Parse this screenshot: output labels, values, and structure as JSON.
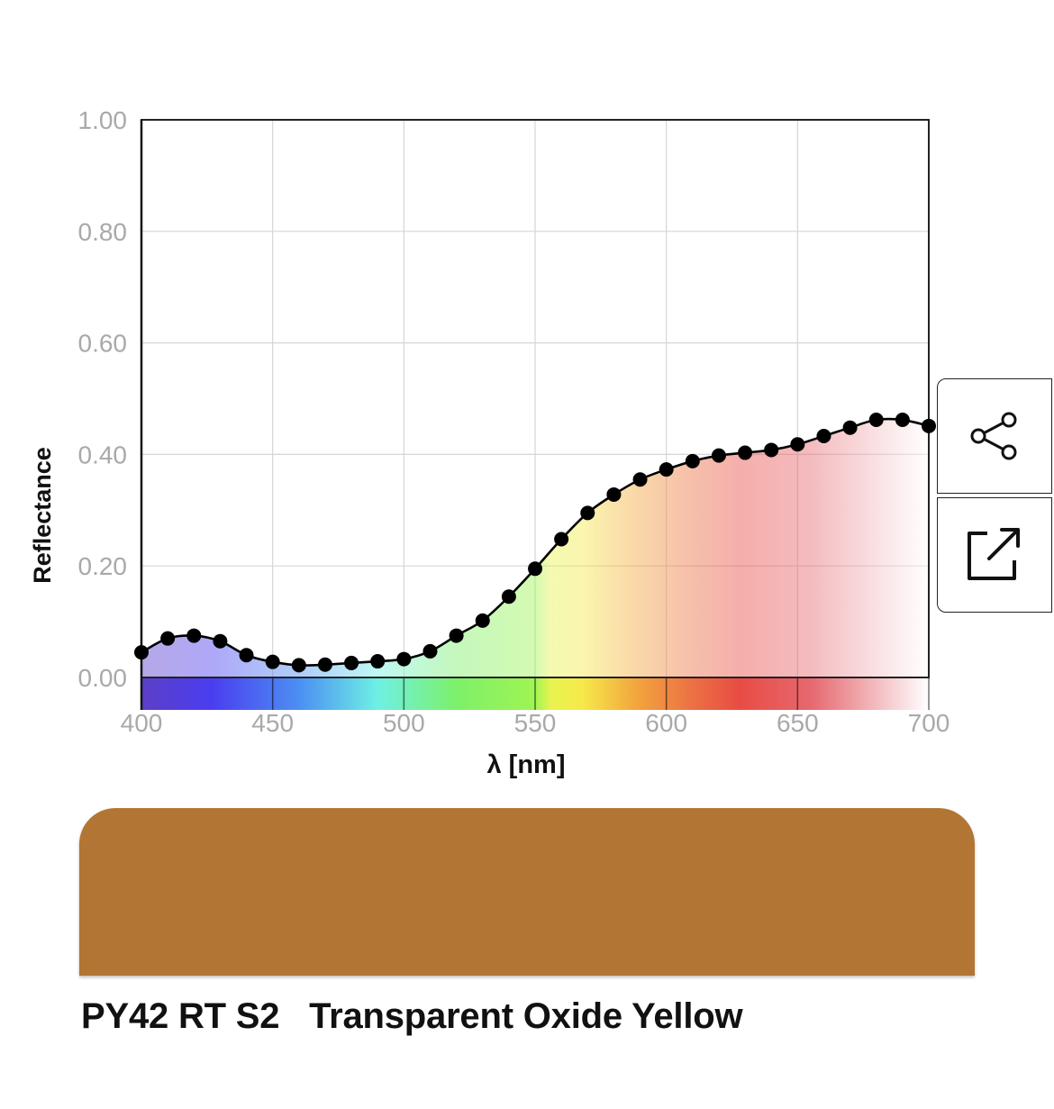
{
  "chart_data": {
    "type": "line",
    "xlabel": "λ [nm]",
    "ylabel": "Reflectance",
    "xlim": [
      400,
      700
    ],
    "ylim": [
      0,
      1
    ],
    "x_ticks": [
      "400",
      "450",
      "500",
      "550",
      "600",
      "650",
      "700"
    ],
    "y_ticks": [
      "0.00",
      "0.20",
      "0.40",
      "0.60",
      "0.80",
      "1.00"
    ],
    "grid": true,
    "series": [
      {
        "x": [
          400,
          410,
          420,
          430,
          440,
          450,
          460,
          470,
          480,
          490,
          500,
          510,
          520,
          530,
          540,
          550,
          560,
          570,
          580,
          590,
          600,
          610,
          620,
          630,
          640,
          650,
          660,
          670,
          680,
          690,
          700
        ],
        "values": [
          0.045,
          0.07,
          0.075,
          0.065,
          0.04,
          0.028,
          0.022,
          0.023,
          0.026,
          0.029,
          0.033,
          0.047,
          0.075,
          0.102,
          0.145,
          0.195,
          0.248,
          0.295,
          0.328,
          0.355,
          0.373,
          0.388,
          0.398,
          0.403,
          0.408,
          0.418,
          0.433,
          0.448,
          0.462,
          0.462,
          0.451
        ]
      }
    ]
  },
  "pigment": {
    "label": "PY42 RT S2   Transparent Oxide Yellow",
    "swatch_color": "#b37533"
  },
  "actions": {
    "share_icon": "share-icon",
    "external_icon": "external-link-icon"
  }
}
